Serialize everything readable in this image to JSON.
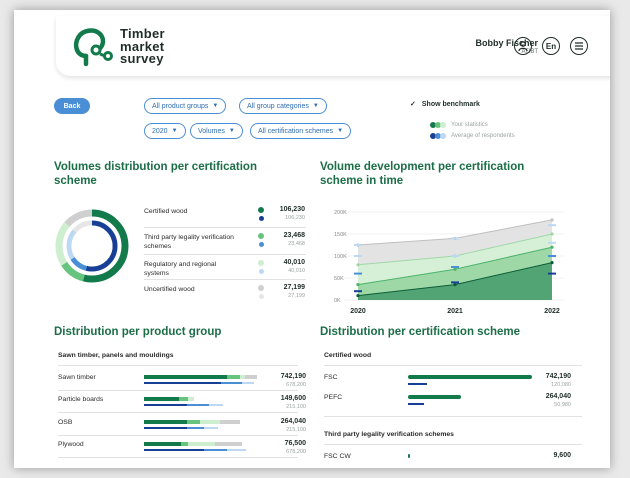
{
  "header": {
    "logo_text": [
      "Timber",
      "market",
      "survey"
    ],
    "user_name": "Bobby Fischer",
    "user_org": "ATIBT",
    "lang_label": "En"
  },
  "filters": {
    "back_label": "Back",
    "product_groups": "All product groups",
    "group_categories": "All group categories",
    "year": "2020",
    "measure": "Volumes",
    "cert_schemes": "All certification schemes",
    "show_benchmark": "Show benchmark",
    "your_statistics": "Your statistics",
    "average_respondents": "Average of respondents"
  },
  "colors": {
    "green_dark": "#127a4b",
    "green_mid": "#67c47e",
    "green_light": "#cdeecf",
    "grey": "#cfcfcf",
    "blue_dark": "#183f96",
    "blue_mid": "#4a8fd6",
    "blue_light": "#bcd8f2",
    "title_green": "#1b6e47"
  },
  "volumes_distribution": {
    "title": "Volumes distribution per certification scheme",
    "items": [
      {
        "label": "Certified wood",
        "value": "106,230",
        "bench": "106,230"
      },
      {
        "label": "Third party legality verification schemes",
        "value": "23,468",
        "bench": "23,468"
      },
      {
        "label": "Regulatory and regional systems",
        "value": "40,010",
        "bench": "40,010"
      },
      {
        "label": "Uncertified wood",
        "value": "27,199",
        "bench": "27,199"
      }
    ]
  },
  "volume_development": {
    "title": "Volume development per certification scheme in time"
  },
  "chart_data": {
    "type": "area",
    "title": "Volume development per certification scheme in time",
    "x": [
      "2020",
      "2021",
      "2022"
    ],
    "yticks": [
      "0K",
      "50K",
      "100K",
      "150K",
      "200K"
    ],
    "ylim": [
      0,
      200000
    ],
    "grid": true,
    "series": [
      {
        "values": [
          125000,
          140000,
          182000
        ],
        "color": "#e3e3e3"
      },
      {
        "values": [
          80000,
          100000,
          150000
        ],
        "color": "#d6f0d7"
      },
      {
        "values": [
          35000,
          70000,
          120000
        ],
        "color": "#9fd8a7"
      },
      {
        "values": [
          10000,
          35000,
          85000
        ],
        "color": "#127a4b"
      }
    ],
    "benchmark_markers": [
      {
        "x": "2020",
        "values": [
          125000,
          100000,
          60000,
          20000
        ]
      },
      {
        "x": "2021",
        "values": [
          140000,
          100000,
          75000,
          40000
        ]
      },
      {
        "x": "2022",
        "values": [
          170000,
          130000,
          100000,
          60000
        ]
      }
    ]
  },
  "product_group": {
    "title": "Distribution per product group",
    "subheading": "Sawn timber, panels and mouldings",
    "rows": [
      {
        "label": "Sawn timber",
        "value": "742,190",
        "bench": "678,200",
        "dark": 0.68,
        "mid": 0.11,
        "light": 0.04,
        "grey": 0.1,
        "bd": 0.63,
        "bm": 0.17,
        "bl": 0.1
      },
      {
        "label": "Particle boards",
        "value": "149,600",
        "bench": "215,100",
        "dark": 0.29,
        "mid": 0.07,
        "light": 0.05,
        "grey": 0.0,
        "bd": 0.35,
        "bm": 0.18,
        "bl": 0.12
      },
      {
        "label": "OSB",
        "value": "264,040",
        "bench": "215,100",
        "dark": 0.35,
        "mid": 0.11,
        "light": 0.16,
        "grey": 0.17,
        "bd": 0.35,
        "bm": 0.14,
        "bl": 0.12
      },
      {
        "label": "Plywood",
        "value": "76,500",
        "bench": "678,200",
        "dark": 0.3,
        "mid": 0.06,
        "light": 0.22,
        "grey": 0.22,
        "bd": 0.49,
        "bm": 0.19,
        "bl": 0.16
      }
    ]
  },
  "cert_distribution": {
    "title": "Distribution per certification scheme",
    "subheading1": "Certified wood",
    "subheading2": "Third party legality verification schemes",
    "rows": [
      {
        "label": "FSC",
        "value": "742,190",
        "bench": "120,080",
        "green": 0.99,
        "blue": 0.15
      },
      {
        "label": "PEFC",
        "value": "264,040",
        "bench": "50,980",
        "green": 0.42,
        "blue": 0.13
      },
      {
        "label": "FSC CW",
        "value": "9,600",
        "bench": "",
        "green": 0.01,
        "blue": 0.0
      }
    ]
  }
}
